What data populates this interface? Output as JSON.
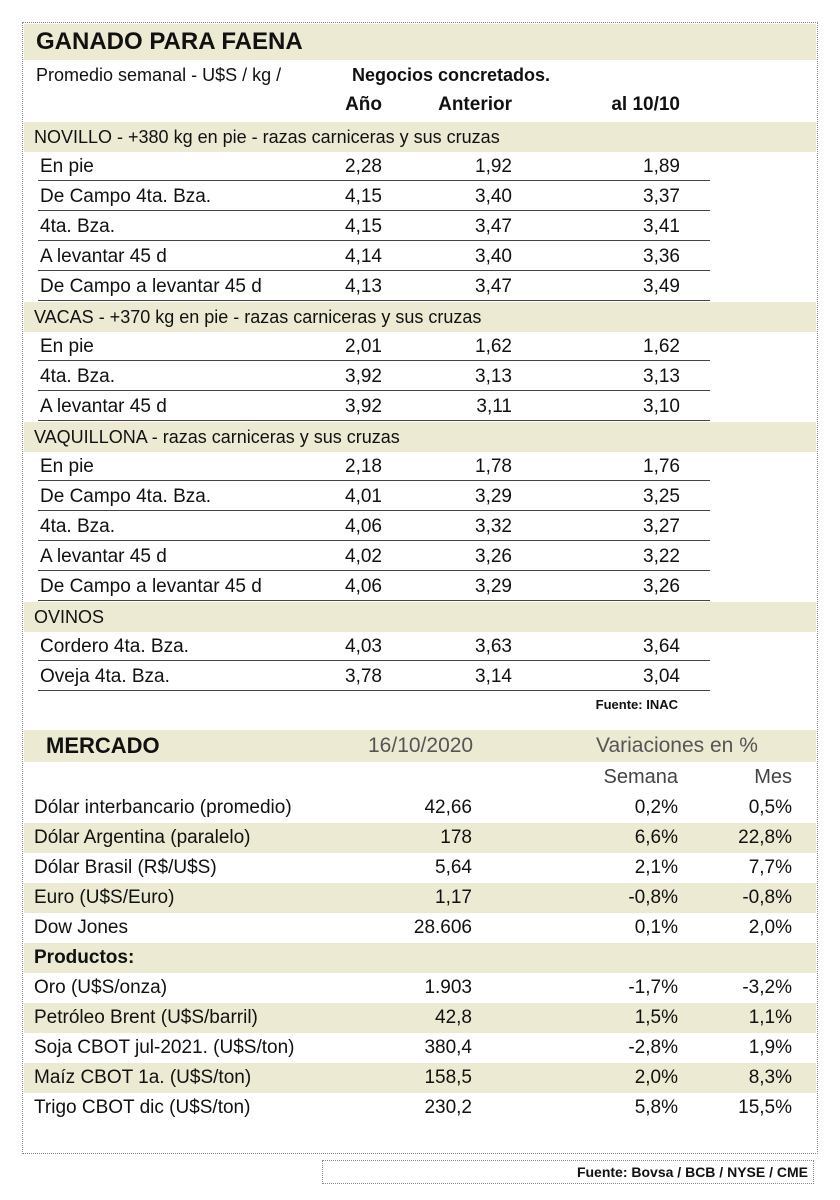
{
  "ganado": {
    "title": "GANADO PARA FAENA",
    "subtitle": "Promedio semanal - U$S / kg /",
    "subtitle_bold": "Negocios concretados.",
    "columns": [
      "Año",
      "Anterior",
      "al 10/10"
    ],
    "sections": [
      {
        "title": "NOVILLO - +380 kg en pie - razas carniceras y sus cruzas",
        "rows": [
          [
            "En pie",
            "2,28",
            "1,92",
            "1,89"
          ],
          [
            "De Campo 4ta. Bza.",
            "4,15",
            "3,40",
            "3,37"
          ],
          [
            "4ta. Bza.",
            "4,15",
            "3,47",
            "3,41"
          ],
          [
            "A levantar 45 d",
            "4,14",
            "3,40",
            "3,36"
          ],
          [
            "De Campo a levantar 45 d",
            "4,13",
            "3,47",
            "3,49"
          ]
        ]
      },
      {
        "title": "VACAS - +370 kg en pie - razas carniceras y sus cruzas",
        "rows": [
          [
            "En pie",
            "2,01",
            "1,62",
            "1,62"
          ],
          [
            "4ta. Bza.",
            "3,92",
            "3,13",
            "3,13"
          ],
          [
            "A levantar 45 d",
            "3,92",
            "3,11",
            "3,10"
          ]
        ]
      },
      {
        "title": "VAQUILLONA - razas carniceras y sus cruzas",
        "rows": [
          [
            "En pie",
            "2,18",
            "1,78",
            "1,76"
          ],
          [
            "De Campo 4ta. Bza.",
            "4,01",
            "3,29",
            "3,25"
          ],
          [
            "4ta. Bza.",
            "4,06",
            "3,32",
            "3,27"
          ],
          [
            "A levantar 45 d",
            "4,02",
            "3,26",
            "3,22"
          ],
          [
            "De Campo a levantar 45 d",
            "4,06",
            "3,29",
            "3,26"
          ]
        ]
      },
      {
        "title": "OVINOS",
        "rows": [
          [
            "Cordero 4ta. Bza.",
            "4,03",
            "3,63",
            "3,64"
          ],
          [
            "Oveja 4ta. Bza.",
            "3,78",
            "3,14",
            "3,04"
          ]
        ]
      }
    ],
    "source": "Fuente: INAC"
  },
  "mercado": {
    "title": "MERCADO",
    "date": "16/10/2020",
    "variations": "Variaciones en %",
    "columns": [
      "Semana",
      "Mes"
    ],
    "rows": [
      [
        "Dólar interbancario (promedio)",
        "42,66",
        "0,2%",
        "0,5%"
      ],
      [
        "Dólar Argentina (paralelo)",
        "178",
        "6,6%",
        "22,8%"
      ],
      [
        "Dólar Brasil (R$/U$S)",
        "5,64",
        "2,1%",
        "7,7%"
      ],
      [
        "Euro (U$S/Euro)",
        "1,17",
        "-0,8%",
        "-0,8%"
      ],
      [
        "Dow Jones",
        "28.606",
        "0,1%",
        "2,0%"
      ]
    ],
    "products_title": "Productos:",
    "product_rows": [
      [
        "Oro (U$S/onza)",
        "1.903",
        "-1,7%",
        "-3,2%"
      ],
      [
        "Petróleo Brent (U$S/barril)",
        "42,8",
        "1,5%",
        "1,1%"
      ],
      [
        "Soja CBOT jul-2021. (U$S/ton)",
        "380,4",
        "-2,8%",
        "1,9%"
      ],
      [
        "Maíz CBOT 1a. (U$S/ton)",
        "158,5",
        "2,0%",
        "8,3%"
      ],
      [
        "Trigo CBOT dic (U$S/ton)",
        "230,2",
        "5,8%",
        "15,5%"
      ]
    ]
  },
  "footer_source": "Fuente: Bovsa / BCB / NYSE / CME"
}
